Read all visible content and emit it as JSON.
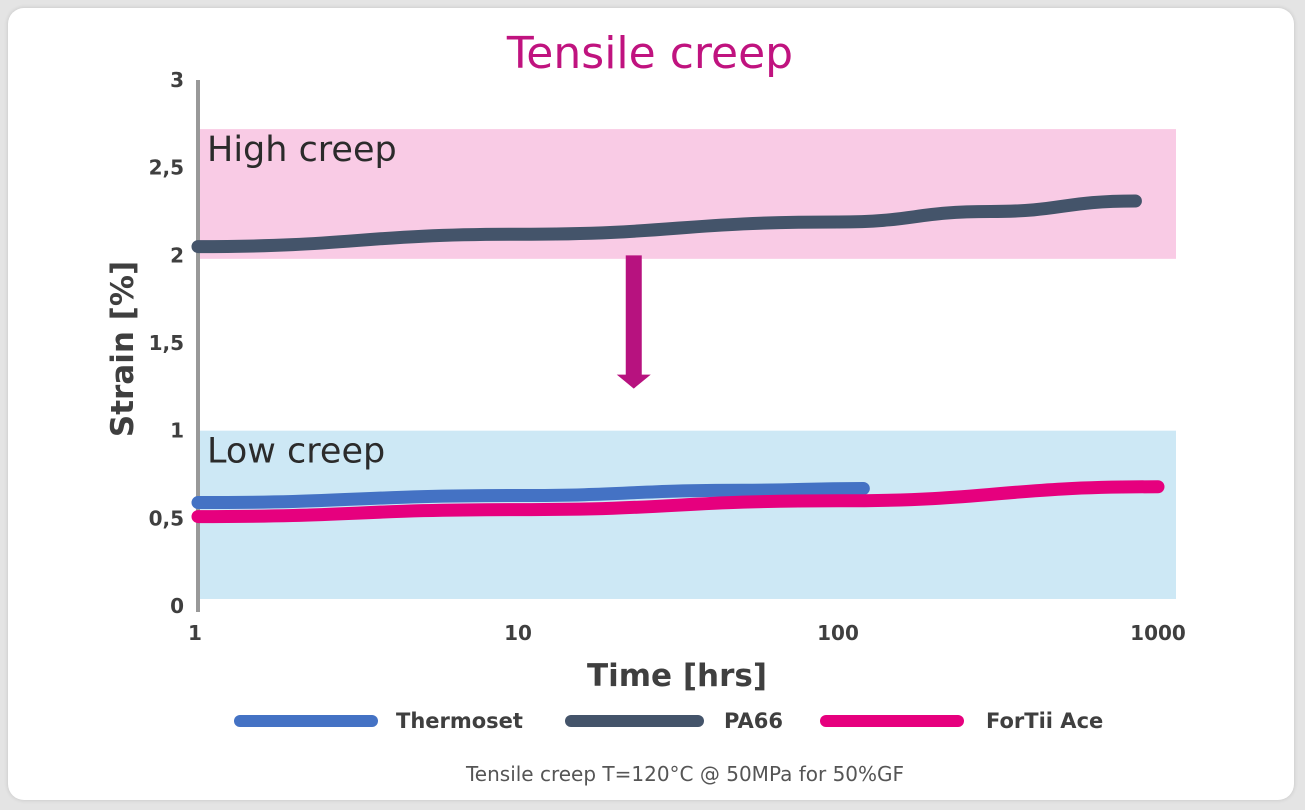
{
  "chart_data": {
    "type": "line",
    "title": "Tensile creep",
    "xlabel": "Time [hrs]",
    "ylabel": "Strain [%]",
    "x_scale": "log",
    "xlim": [
      1,
      1000
    ],
    "ylim": [
      0,
      3
    ],
    "x_ticks": [
      {
        "value": 1,
        "label": "1"
      },
      {
        "value": 10,
        "label": "10"
      },
      {
        "value": 100,
        "label": "100"
      },
      {
        "value": 1000,
        "label": "1000"
      }
    ],
    "y_ticks": [
      {
        "value": 0,
        "label": "0"
      },
      {
        "value": 0.5,
        "label": "0,5"
      },
      {
        "value": 1,
        "label": "1"
      },
      {
        "value": 1.5,
        "label": "1,5"
      },
      {
        "value": 2,
        "label": "2"
      },
      {
        "value": 2.5,
        "label": "2,5"
      },
      {
        "value": 3,
        "label": "3"
      }
    ],
    "bands": [
      {
        "label": "High creep",
        "y_from": 1.98,
        "y_to": 2.72,
        "x_from": 1,
        "x_to": 1000,
        "color": "#f9cbe5"
      },
      {
        "label": "Low creep",
        "y_from": 0.04,
        "y_to": 1.0,
        "x_from": 1,
        "x_to": 1000,
        "color": "#cde8f5"
      }
    ],
    "series": [
      {
        "name": "Thermoset",
        "color": "#4472c4",
        "x": [
          1,
          10,
          50,
          120
        ],
        "y": [
          0.59,
          0.63,
          0.66,
          0.67
        ]
      },
      {
        "name": "PA66",
        "color": "#44546a",
        "x": [
          1,
          10,
          100,
          300,
          850
        ],
        "y": [
          2.05,
          2.12,
          2.19,
          2.25,
          2.31
        ]
      },
      {
        "name": "ForTii Ace",
        "color": "#e6007e",
        "x": [
          1,
          10,
          100,
          1000
        ],
        "y": [
          0.51,
          0.55,
          0.6,
          0.68
        ]
      }
    ],
    "arrow": {
      "x": 23,
      "y_from": 2.0,
      "y_to": 1.24,
      "color": "#b7127f"
    },
    "legend": "bottom",
    "grid": false,
    "note": "Tensile creep T=120°C @ 50MPa  for 50%GF"
  },
  "colors": {
    "title": "#c0137f",
    "axis": "#999999"
  }
}
